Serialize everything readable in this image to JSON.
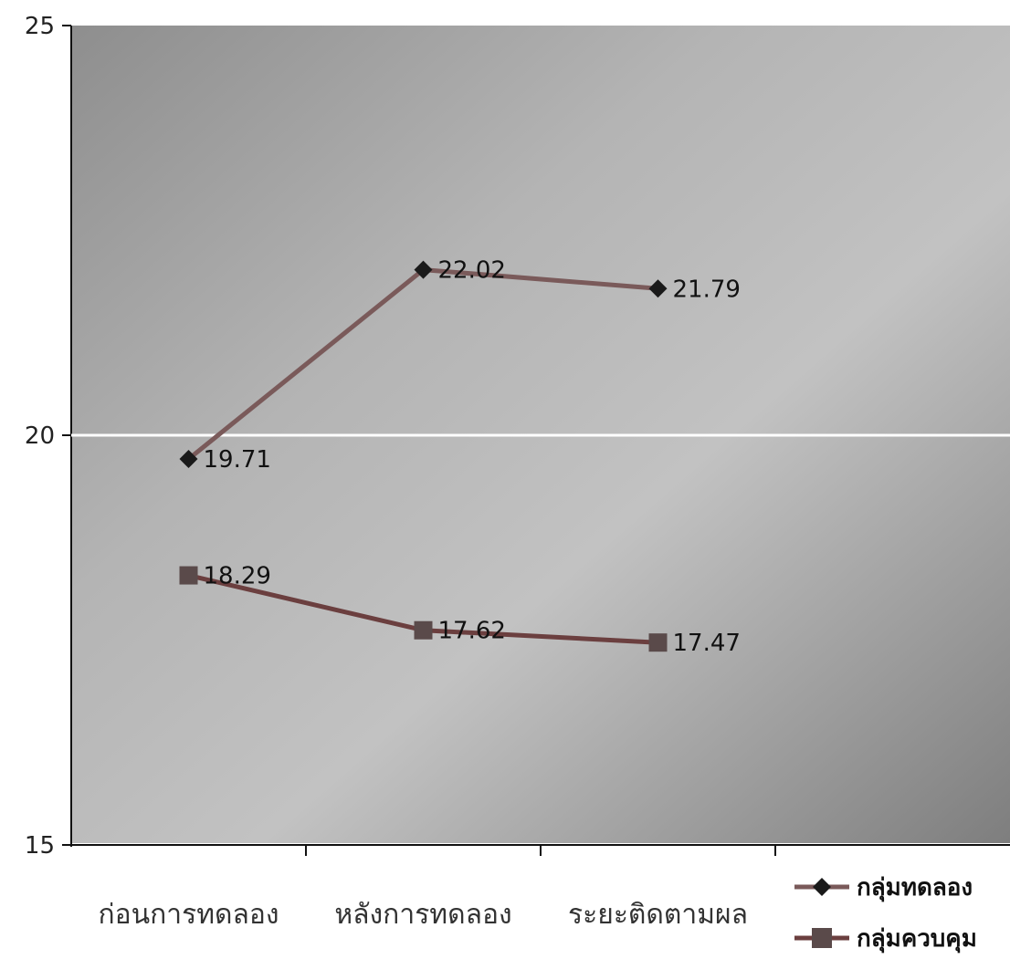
{
  "chart_data": {
    "type": "line",
    "categories": [
      "ก่อนการทดลอง",
      "หลังการทดลอง",
      "ระยะติดตามผล"
    ],
    "series": [
      {
        "name": "กลุ่มทดลอง",
        "values": [
          19.71,
          22.02,
          21.79
        ],
        "marker": "diamond",
        "line_color": "#7a5a5a",
        "marker_color": "#1a1a1a"
      },
      {
        "name": "กลุ่มควบคุม",
        "values": [
          18.29,
          17.62,
          17.47
        ],
        "marker": "square",
        "line_color": "#6b3f3f",
        "marker_color": "#5a4a4a"
      }
    ],
    "data_labels": [
      [
        "19.71",
        "22.02",
        "21.79"
      ],
      [
        "18.29",
        "17.62",
        "17.47"
      ]
    ],
    "ylim": [
      15,
      25
    ],
    "yticks": [
      "15",
      "20",
      "25"
    ],
    "gridlines": [
      20
    ],
    "gridline_color": "#ffffff",
    "background": "gray-gradient",
    "legend_position": "bottom-right"
  }
}
